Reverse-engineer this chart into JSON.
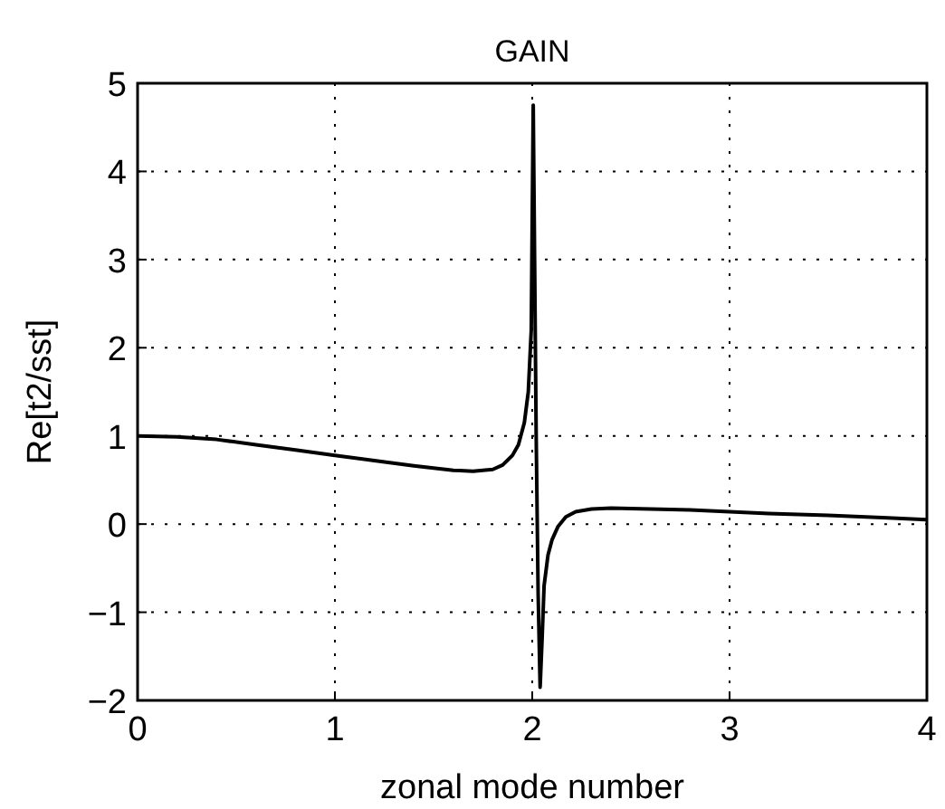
{
  "chart_data": {
    "type": "line",
    "title": "GAIN",
    "xlabel": "zonal mode number",
    "ylabel": "Re[t2/sst]",
    "x": [
      0,
      0.2,
      0.4,
      0.6,
      0.8,
      1.0,
      1.2,
      1.4,
      1.6,
      1.7,
      1.8,
      1.85,
      1.9,
      1.93,
      1.96,
      1.98,
      1.995,
      2.005,
      2.012,
      2.02,
      2.03,
      2.04,
      2.05,
      2.06,
      2.08,
      2.1,
      2.13,
      2.17,
      2.22,
      2.3,
      2.4,
      2.6,
      2.8,
      3.0,
      3.2,
      3.5,
      3.8,
      4.0
    ],
    "series": [
      {
        "color": "#000000",
        "values": [
          1.0,
          0.99,
          0.96,
          0.9,
          0.84,
          0.78,
          0.72,
          0.66,
          0.61,
          0.6,
          0.62,
          0.67,
          0.78,
          0.9,
          1.15,
          1.5,
          2.2,
          4.75,
          3.0,
          1.0,
          -0.8,
          -1.85,
          -1.3,
          -0.7,
          -0.35,
          -0.18,
          -0.03,
          0.08,
          0.14,
          0.17,
          0.18,
          0.17,
          0.16,
          0.14,
          0.12,
          0.1,
          0.07,
          0.05
        ]
      }
    ],
    "xlim": [
      0,
      4
    ],
    "ylim": [
      -2,
      5
    ],
    "xticks": [
      0,
      1,
      2,
      3,
      4
    ],
    "yticks": [
      -2,
      -1,
      0,
      1,
      2,
      3,
      4,
      5
    ],
    "grid": true,
    "marker": "none",
    "line_style": "solid"
  }
}
